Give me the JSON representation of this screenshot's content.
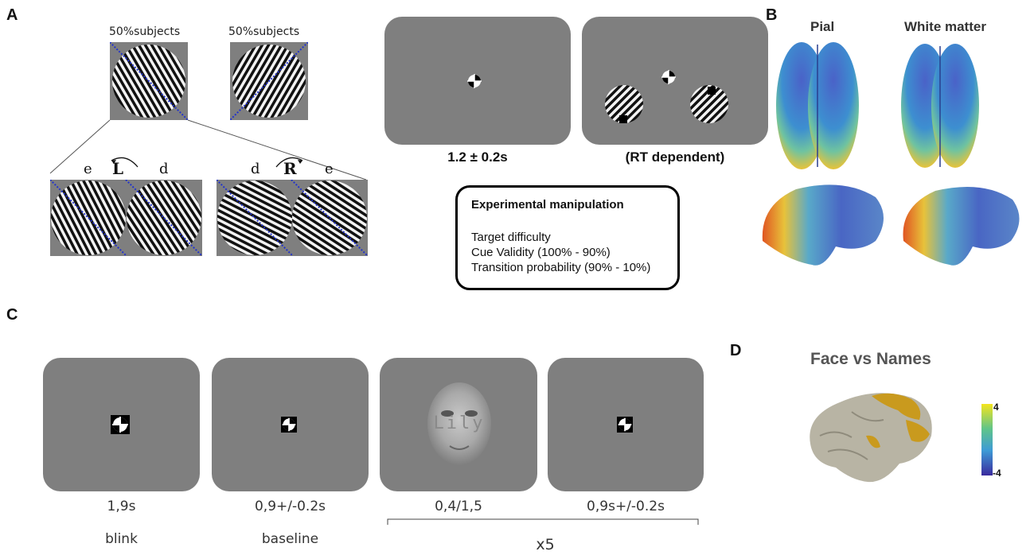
{
  "panel_a": {
    "letter": "A",
    "group_left_label": "50%subjects",
    "group_right_label": "50%subjects",
    "left_pair": {
      "letter_1": "e",
      "rotation": "L",
      "letter_2": "d"
    },
    "right_pair": {
      "letter_1": "d",
      "rotation": "R",
      "letter_2": "e"
    },
    "screen_1_caption": "1.2 ± 0.2s",
    "screen_2_caption": "(RT dependent)",
    "manipulation": {
      "title": "Experimental manipulation",
      "lines": [
        "Target difficulty",
        "Cue Validity  (100% - 90%)",
        "Transition probability (90% - 10%)"
      ]
    }
  },
  "panel_b": {
    "letter": "B",
    "col_1_title": "Pial",
    "col_2_title": "White matter"
  },
  "panel_c": {
    "letter": "C",
    "screens": [
      {
        "time": "1,9s",
        "label": "blink"
      },
      {
        "time": "0,9+/-0.2s",
        "label": "baseline"
      },
      {
        "time": "0,4/1,5",
        "label": ""
      },
      {
        "time": "0,9s+/-0.2s",
        "label": ""
      }
    ],
    "face_word": "Lily",
    "repeat_label": "x5"
  },
  "panel_d": {
    "letter": "D",
    "title": "Face vs Names",
    "colorbar_max": "4",
    "colorbar_min": "-4"
  },
  "colors": {
    "screen_gray": "#7f7f7f",
    "cue_line": "#2233cc"
  }
}
